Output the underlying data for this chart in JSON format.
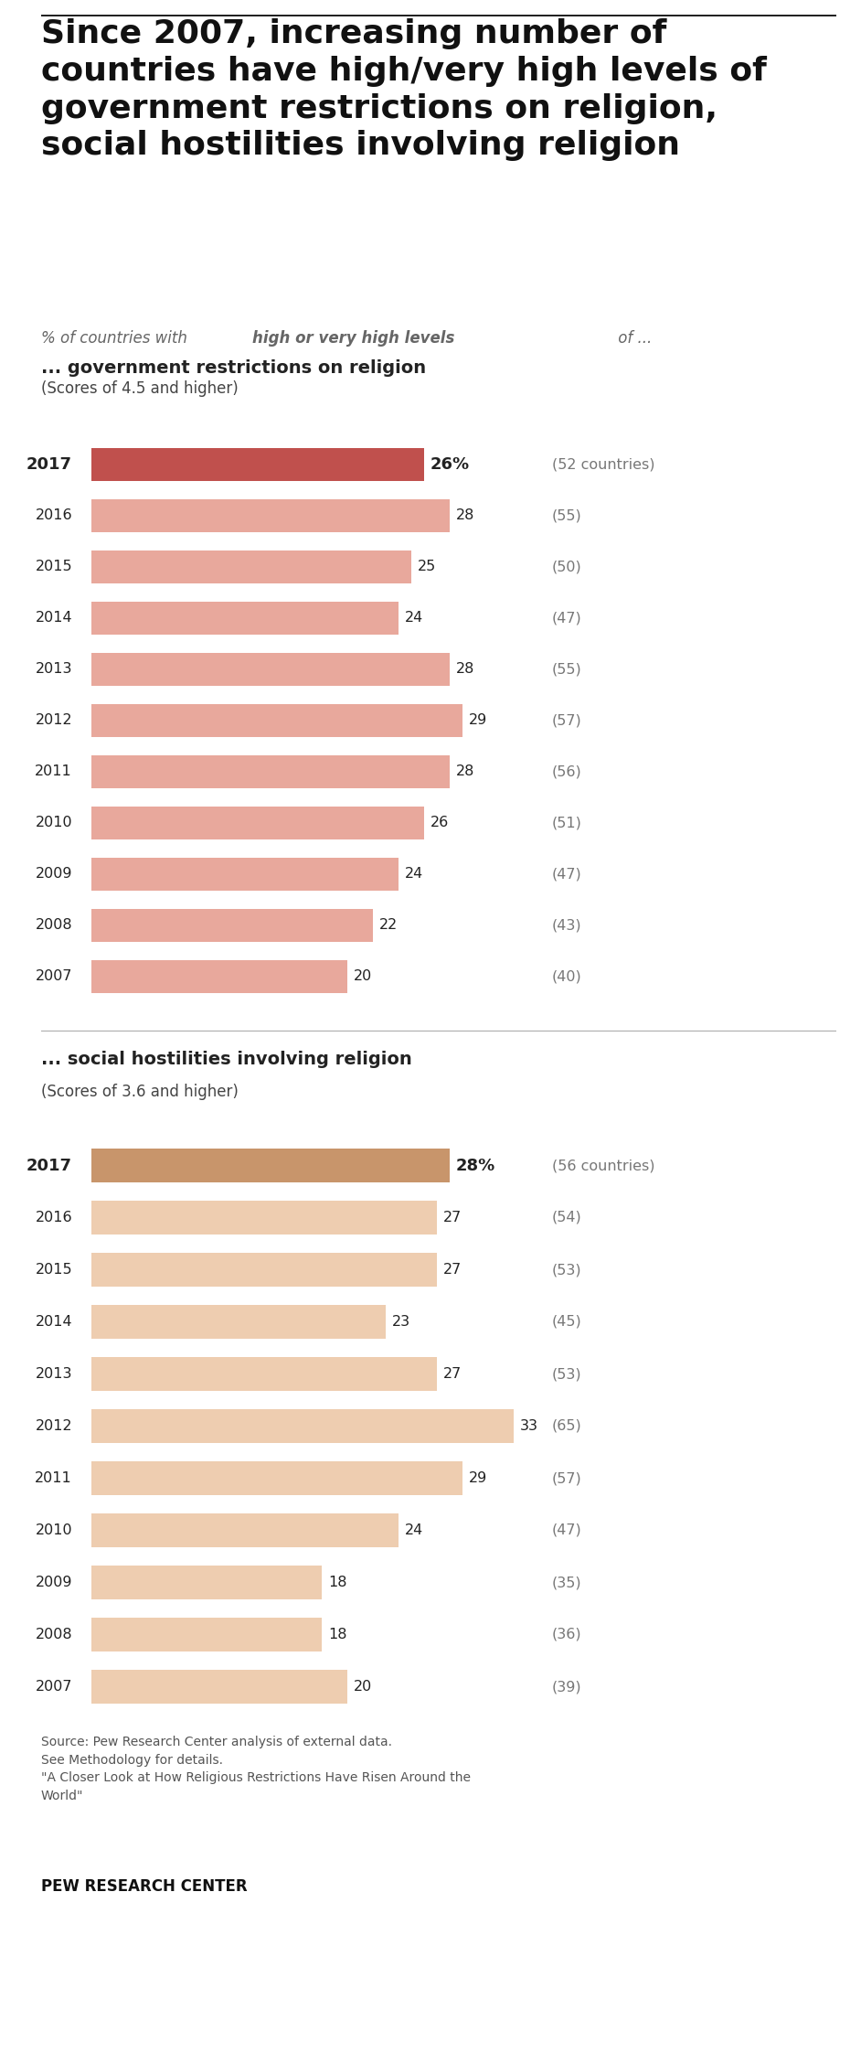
{
  "title": "Since 2007, increasing number of\ncountries have high/very high levels of\ngovernment restrictions on religion,\nsocial hostilities involving religion",
  "subtitle_plain": "% of countries with ",
  "subtitle_bold": "high or very high levels",
  "subtitle_end": " of ...",
  "section1_title": "... government restrictions on religion",
  "section1_subtitle": "(Scores of 4.5 and higher)",
  "section2_title": "... social hostilities involving religion",
  "section2_subtitle": "(Scores of 3.6 and higher)",
  "gov_years": [
    "2017",
    "2016",
    "2015",
    "2014",
    "2013",
    "2012",
    "2011",
    "2010",
    "2009",
    "2008",
    "2007"
  ],
  "gov_values": [
    26,
    28,
    25,
    24,
    28,
    29,
    28,
    26,
    24,
    22,
    20
  ],
  "gov_countries": [
    "(52 countries)",
    "(55)",
    "(50)",
    "(47)",
    "(55)",
    "(57)",
    "(56)",
    "(51)",
    "(47)",
    "(43)",
    "(40)"
  ],
  "soc_years": [
    "2017",
    "2016",
    "2015",
    "2014",
    "2013",
    "2012",
    "2011",
    "2010",
    "2009",
    "2008",
    "2007"
  ],
  "soc_values": [
    28,
    27,
    27,
    23,
    27,
    33,
    29,
    24,
    18,
    18,
    20
  ],
  "soc_countries": [
    "(56 countries)",
    "(54)",
    "(53)",
    "(45)",
    "(53)",
    "(65)",
    "(57)",
    "(47)",
    "(35)",
    "(36)",
    "(39)"
  ],
  "gov_highlight_color": "#c0504d",
  "gov_normal_color": "#e8a89c",
  "soc_highlight_color": "#c8956b",
  "soc_normal_color": "#eecdb0",
  "bg_color": "#ffffff",
  "source_line1": "Source: Pew Research Center analysis of external data.",
  "source_line2": "See Methodology for details.",
  "source_line3": "\"A Closer Look at How Religious Restrictions Have Risen Around the",
  "source_line4": "World\"",
  "footer_text": "PEW RESEARCH CENTER",
  "max_bar_value": 40,
  "bar_height": 0.65
}
